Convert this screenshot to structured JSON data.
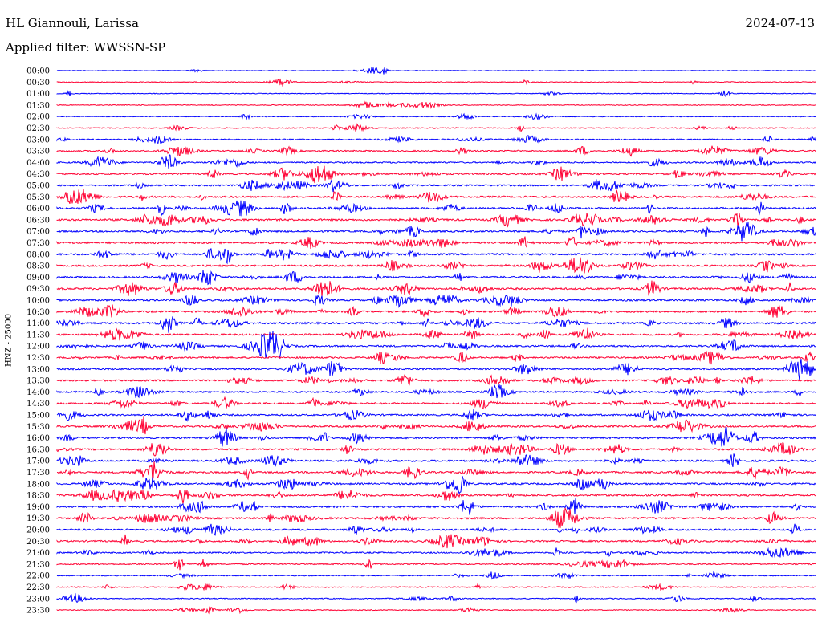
{
  "header": {
    "station": "HL Giannouli, Larissa",
    "date": "2024-07-13",
    "filter": "Applied filter: WWSSN-SP"
  },
  "chart_data": {
    "type": "line",
    "title": "HL Giannouli, Larissa",
    "ylabel": "HNZ - 25000",
    "row_minutes": 30,
    "tick_labels": [
      "00:00",
      "00:30",
      "01:00",
      "01:30",
      "02:00",
      "02:30",
      "03:00",
      "03:30",
      "04:00",
      "04:30",
      "05:00",
      "05:30",
      "06:00",
      "06:30",
      "07:00",
      "07:30",
      "08:00",
      "08:30",
      "09:00",
      "09:30",
      "10:00",
      "10:30",
      "11:00",
      "11:30",
      "12:00",
      "12:30",
      "13:00",
      "13:30",
      "14:00",
      "14:30",
      "15:00",
      "15:30",
      "16:00",
      "16:30",
      "17:00",
      "17:30",
      "18:00",
      "18:30",
      "19:00",
      "19:30",
      "20:00",
      "20:30",
      "21:00",
      "21:30",
      "22:00",
      "22:30",
      "23:00",
      "23:30"
    ],
    "row_colors": [
      "#0000ff",
      "#ff0033"
    ],
    "activity_level": [
      0.05,
      0.15,
      0.1,
      0.15,
      0.15,
      0.3,
      0.4,
      0.5,
      0.55,
      0.65,
      0.7,
      0.8,
      0.85,
      0.85,
      0.8,
      0.8,
      0.85,
      0.8,
      0.8,
      0.85,
      0.8,
      0.8,
      0.85,
      0.8,
      0.75,
      0.7,
      0.7,
      0.7,
      0.7,
      0.7,
      0.7,
      0.75,
      0.8,
      0.8,
      0.8,
      0.75,
      0.75,
      0.8,
      0.8,
      0.85,
      0.75,
      0.7,
      0.55,
      0.45,
      0.3,
      0.3,
      0.25,
      0.2
    ],
    "grid": false
  }
}
